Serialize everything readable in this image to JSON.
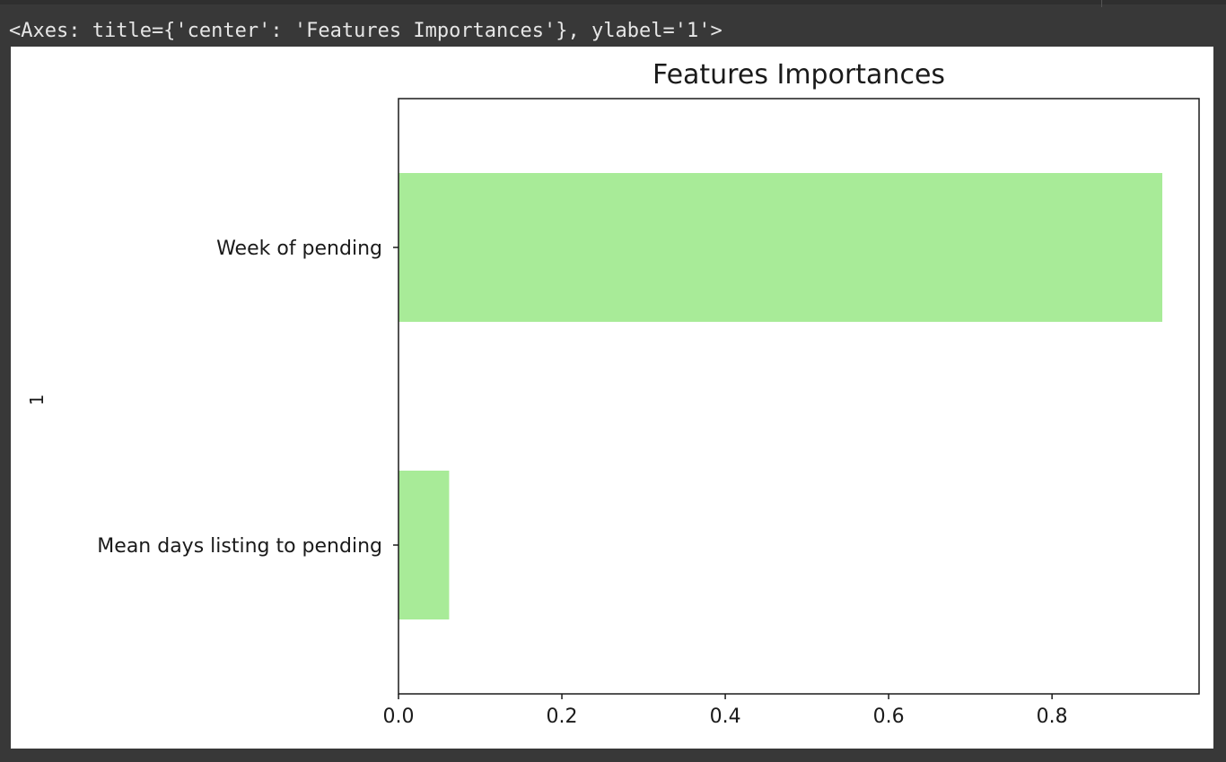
{
  "output": {
    "repr_text": "<Axes: title={'center': 'Features Importances'}, ylabel='1'>"
  },
  "colors": {
    "background": "#383838",
    "figure": "#ffffff",
    "bar": "#a8eb98",
    "text": "#e6e6e6"
  },
  "chart_data": {
    "type": "bar",
    "orientation": "horizontal",
    "title": "Features Importances",
    "xlabel": "",
    "ylabel": "1",
    "categories": [
      "Week of pending",
      "Mean days listing to pending"
    ],
    "values": [
      0.935,
      0.062
    ],
    "xlim": [
      0,
      0.98
    ],
    "xticks": [
      0.0,
      0.2,
      0.4,
      0.6,
      0.8
    ],
    "xtick_labels": [
      "0.0",
      "0.2",
      "0.4",
      "0.6",
      "0.8"
    ],
    "bar_color": "#a8eb98",
    "grid": false,
    "legend": "none"
  }
}
